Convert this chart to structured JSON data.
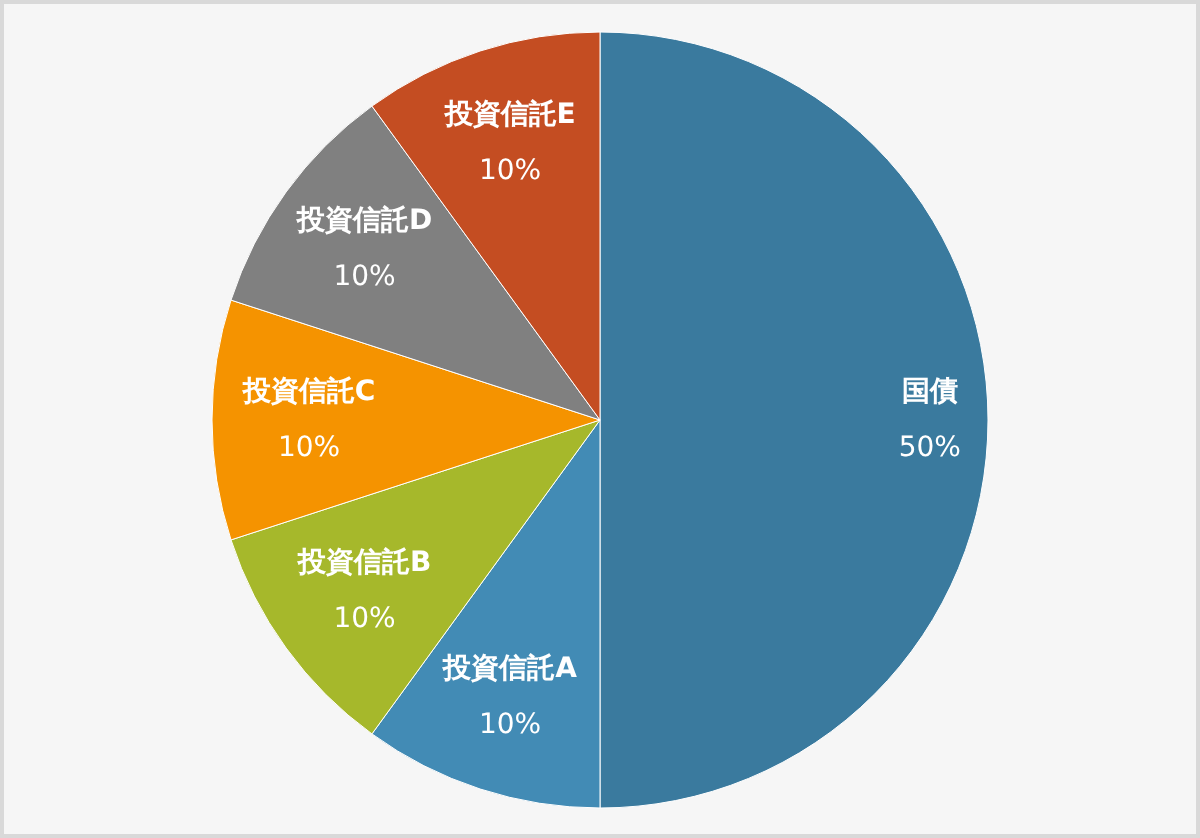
{
  "chart_data": {
    "type": "pie",
    "categories": [
      "国債",
      "投資信託A",
      "投資信託B",
      "投資信託C",
      "投資信託D",
      "投資信託E"
    ],
    "values": [
      50,
      10,
      10,
      10,
      10,
      10
    ],
    "colors": [
      "#3a7a9e",
      "#428bb5",
      "#a6b82b",
      "#f59300",
      "#808080",
      "#c44d22"
    ],
    "value_labels": [
      "50%",
      "10%",
      "10%",
      "10%",
      "10%",
      "10%"
    ]
  }
}
